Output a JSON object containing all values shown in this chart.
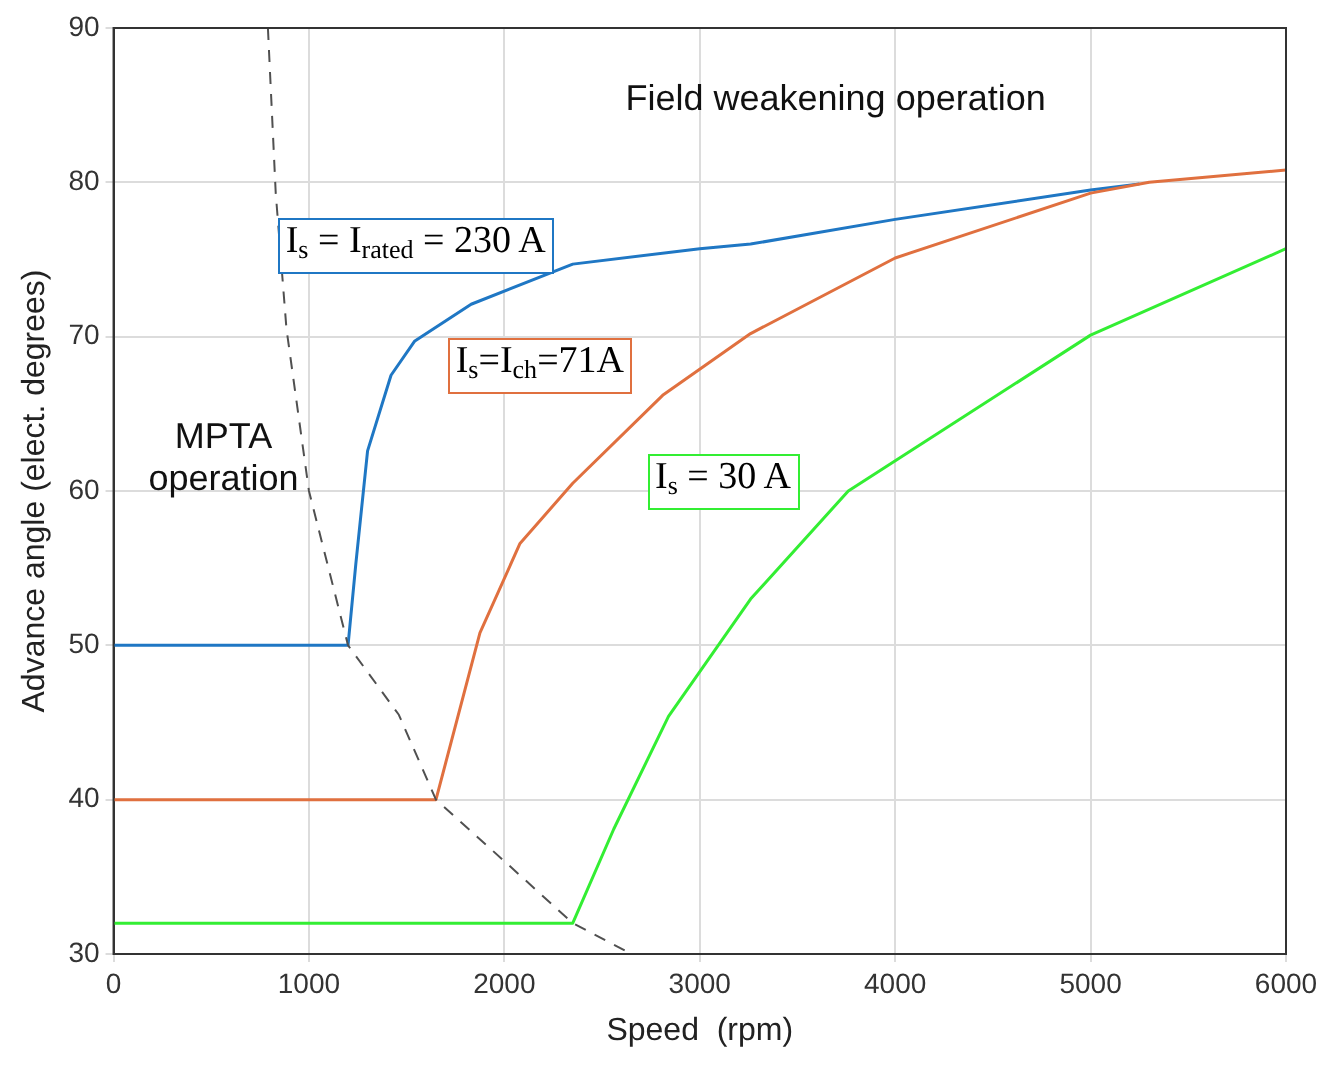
{
  "chart_data": {
    "type": "line",
    "xlabel": "Speed  (rpm)",
    "ylabel": "Advance angle (elect. degrees)",
    "xlim": [
      0,
      6000
    ],
    "xticks": [
      0,
      1000,
      2000,
      3000,
      4000,
      5000,
      6000
    ],
    "ylim": [
      30,
      90
    ],
    "yticks": [
      30,
      40,
      50,
      60,
      70,
      80,
      90
    ],
    "grid": true,
    "legend": false,
    "marker": "none",
    "annotations": [
      "Field weakening operation",
      "MPTA operation"
    ],
    "series": [
      {
        "name": "I$_{s}$ = I$_{rated}$ = 230 A",
        "color": "#1f77c4",
        "x": [
          0,
          1200,
          1240,
          1300,
          1420,
          1540,
          1830,
          2350,
          3000,
          3260,
          4000,
          5000,
          5250
        ],
        "values": [
          50,
          50,
          55.3,
          62.6,
          67.5,
          69.7,
          72.1,
          74.7,
          75.7,
          76,
          77.6,
          79.5,
          79.9
        ]
      },
      {
        "name": "I$_{s}$=I$_{ch}$=71A",
        "color": "#e0703f",
        "x": [
          0,
          1650,
          1875,
          2080,
          2350,
          2810,
          3260,
          4000,
          5000,
          5300,
          6000
        ],
        "values": [
          40,
          40,
          50.8,
          56.6,
          60.5,
          66.2,
          70.2,
          75.1,
          79.3,
          80,
          80.8
        ]
      },
      {
        "name": "I$_{s}$ = 30 A",
        "color": "#33ee33",
        "x": [
          0,
          2350,
          2560,
          2840,
          3260,
          3760,
          5000,
          6000
        ],
        "values": [
          32,
          32,
          38.1,
          45.4,
          53,
          60,
          70.1,
          75.7
        ]
      },
      {
        "color": "#505050",
        "line_style": "dashed",
        "x": [
          790,
          830,
          885,
          1000,
          1200,
          1460,
          1650,
          2010,
          2350,
          2650
        ],
        "values": [
          90,
          79.3,
          70.5,
          60,
          50,
          45.5,
          40,
          35.9,
          32,
          30
        ]
      }
    ]
  }
}
